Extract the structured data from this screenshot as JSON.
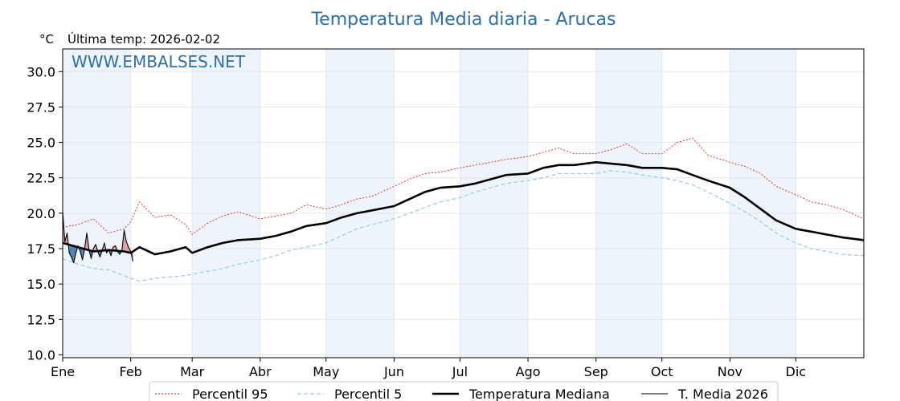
{
  "chart_data": {
    "type": "line",
    "title": "Temperatura Media diaria - Arucas",
    "unit_label": "°C",
    "last_temp_label": "Última temp: 2026-02-02",
    "watermark": "WWW.EMBALSES.NET",
    "ylim": [
      9.8,
      31.6
    ],
    "yticks": [
      "10.0",
      "12.5",
      "15.0",
      "17.5",
      "20.0",
      "22.5",
      "25.0",
      "27.5",
      "30.0"
    ],
    "months": [
      "Ene",
      "Feb",
      "Mar",
      "Abr",
      "May",
      "Jun",
      "Jul",
      "Ago",
      "Sep",
      "Oct",
      "Nov",
      "Dic"
    ],
    "month_start_days": [
      1,
      32,
      60,
      91,
      121,
      152,
      182,
      213,
      244,
      274,
      305,
      335
    ],
    "xlim": [
      1,
      366
    ],
    "grid": true,
    "legend_position": "bottom",
    "colors": {
      "p95": "#e8201c",
      "p5": "#9fcfe3",
      "median": "#000000",
      "current": "#000000",
      "above_fill": "#e2a0a6",
      "below_fill": "#4f7fae",
      "month_band": "#eef4fb"
    },
    "series": [
      {
        "name": "Percentil 95",
        "x": [
          1,
          8,
          15,
          22,
          29,
          32,
          36,
          43,
          50,
          57,
          60,
          67,
          74,
          81,
          91,
          98,
          105,
          112,
          121,
          128,
          135,
          142,
          152,
          159,
          166,
          173,
          182,
          189,
          196,
          203,
          213,
          220,
          227,
          234,
          244,
          251,
          258,
          265,
          274,
          281,
          288,
          295,
          305,
          312,
          319,
          326,
          335,
          342,
          349,
          356,
          366
        ],
        "values": [
          19.0,
          19.2,
          19.6,
          18.6,
          18.9,
          19.4,
          20.8,
          19.7,
          19.9,
          19.2,
          18.5,
          19.3,
          19.8,
          20.1,
          19.6,
          19.8,
          20.0,
          20.6,
          20.3,
          20.6,
          21.0,
          21.2,
          21.9,
          22.4,
          22.8,
          22.9,
          23.2,
          23.4,
          23.6,
          23.8,
          24.0,
          24.3,
          24.6,
          24.2,
          24.2,
          24.5,
          24.9,
          24.2,
          24.2,
          25.0,
          25.3,
          24.1,
          23.6,
          23.3,
          22.8,
          21.9,
          21.3,
          20.8,
          20.6,
          20.3,
          19.6
        ]
      },
      {
        "name": "Percentil 5",
        "x": [
          1,
          8,
          15,
          22,
          29,
          32,
          36,
          43,
          50,
          57,
          60,
          67,
          74,
          81,
          91,
          98,
          105,
          112,
          121,
          128,
          135,
          142,
          152,
          159,
          166,
          173,
          182,
          189,
          196,
          203,
          213,
          220,
          227,
          234,
          244,
          251,
          258,
          265,
          274,
          281,
          288,
          295,
          305,
          312,
          319,
          326,
          335,
          342,
          349,
          356,
          366
        ],
        "values": [
          16.8,
          16.4,
          16.1,
          16.0,
          15.6,
          15.4,
          15.2,
          15.4,
          15.5,
          15.6,
          15.7,
          15.9,
          16.1,
          16.4,
          16.7,
          17.0,
          17.4,
          17.6,
          17.9,
          18.4,
          18.9,
          19.2,
          19.6,
          20.0,
          20.4,
          20.8,
          21.1,
          21.5,
          21.8,
          22.1,
          22.3,
          22.5,
          22.8,
          22.8,
          22.8,
          23.0,
          22.9,
          22.7,
          22.5,
          22.3,
          22.0,
          21.5,
          20.7,
          20.1,
          19.4,
          18.6,
          17.9,
          17.5,
          17.3,
          17.1,
          17.0
        ]
      },
      {
        "name": "Temperatura Mediana",
        "x": [
          1,
          8,
          15,
          22,
          29,
          32,
          36,
          43,
          50,
          57,
          60,
          67,
          74,
          81,
          91,
          98,
          105,
          112,
          121,
          128,
          135,
          142,
          152,
          159,
          166,
          173,
          182,
          189,
          196,
          203,
          213,
          220,
          227,
          234,
          244,
          251,
          258,
          265,
          274,
          281,
          288,
          295,
          305,
          312,
          319,
          326,
          335,
          342,
          349,
          356,
          366
        ],
        "values": [
          17.9,
          17.6,
          17.3,
          17.4,
          17.3,
          17.2,
          17.6,
          17.1,
          17.3,
          17.6,
          17.2,
          17.6,
          17.9,
          18.1,
          18.2,
          18.4,
          18.7,
          19.1,
          19.3,
          19.7,
          20.0,
          20.2,
          20.5,
          21.0,
          21.5,
          21.8,
          21.9,
          22.1,
          22.4,
          22.7,
          22.8,
          23.2,
          23.4,
          23.4,
          23.6,
          23.5,
          23.4,
          23.2,
          23.2,
          23.1,
          22.7,
          22.3,
          21.8,
          21.1,
          20.3,
          19.5,
          18.9,
          18.7,
          18.5,
          18.3,
          18.1
        ]
      },
      {
        "name": "T. Media 2026",
        "x": [
          1,
          2,
          3,
          4,
          5,
          6,
          7,
          8,
          9,
          10,
          11,
          12,
          13,
          14,
          15,
          16,
          17,
          18,
          19,
          20,
          21,
          22,
          23,
          24,
          25,
          26,
          27,
          28,
          29,
          30,
          31,
          32,
          33
        ],
        "values": [
          20.1,
          18.0,
          18.6,
          17.2,
          16.9,
          16.5,
          17.2,
          17.7,
          17.3,
          16.7,
          17.5,
          18.6,
          17.4,
          16.8,
          17.5,
          17.8,
          17.3,
          16.9,
          17.4,
          17.9,
          17.2,
          17.4,
          17.0,
          17.6,
          17.7,
          17.3,
          17.1,
          17.4,
          18.8,
          18.0,
          17.6,
          17.3,
          16.6
        ]
      }
    ]
  }
}
